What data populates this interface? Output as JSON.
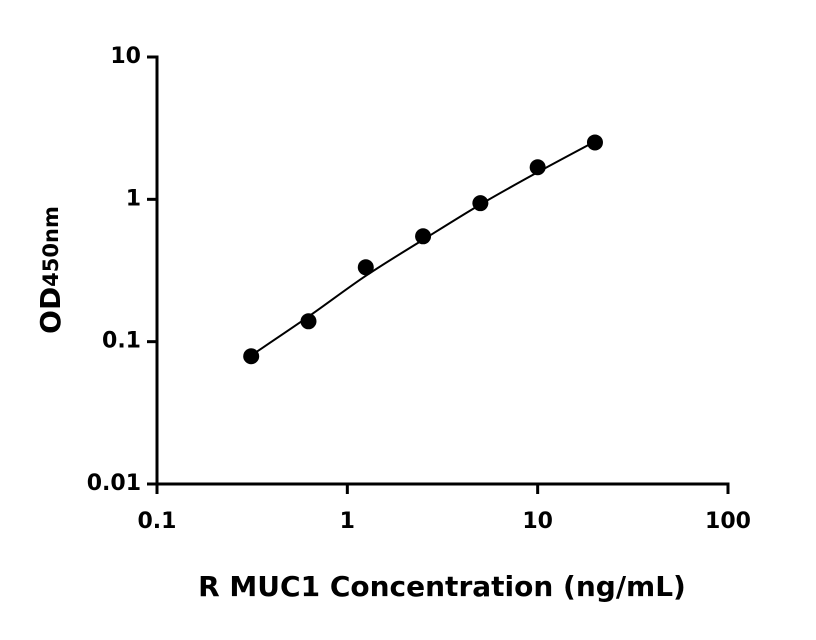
{
  "chart_data": {
    "type": "scatter",
    "xlabel": "R MUC1 Concentration (ng/mL)",
    "ylabel": "OD",
    "ylabel_subscript": "450nm",
    "x": [
      0.3125,
      0.625,
      1.25,
      2.5,
      5,
      10,
      20
    ],
    "values": [
      0.079,
      0.139,
      0.333,
      0.55,
      0.94,
      1.68,
      2.51
    ],
    "color": "#000000",
    "curve": {
      "x": [
        0.3125,
        0.625,
        1.25,
        2.5,
        5,
        10,
        20
      ],
      "values": [
        0.08,
        0.15,
        0.29,
        0.52,
        0.92,
        1.55,
        2.55
      ]
    },
    "xscale": "log",
    "yscale": "log",
    "xlim": [
      0.1,
      100
    ],
    "ylim": [
      0.01,
      10
    ],
    "xticks": [
      0.1,
      1,
      10,
      100
    ],
    "yticks": [
      0.01,
      0.1,
      1,
      10
    ]
  }
}
